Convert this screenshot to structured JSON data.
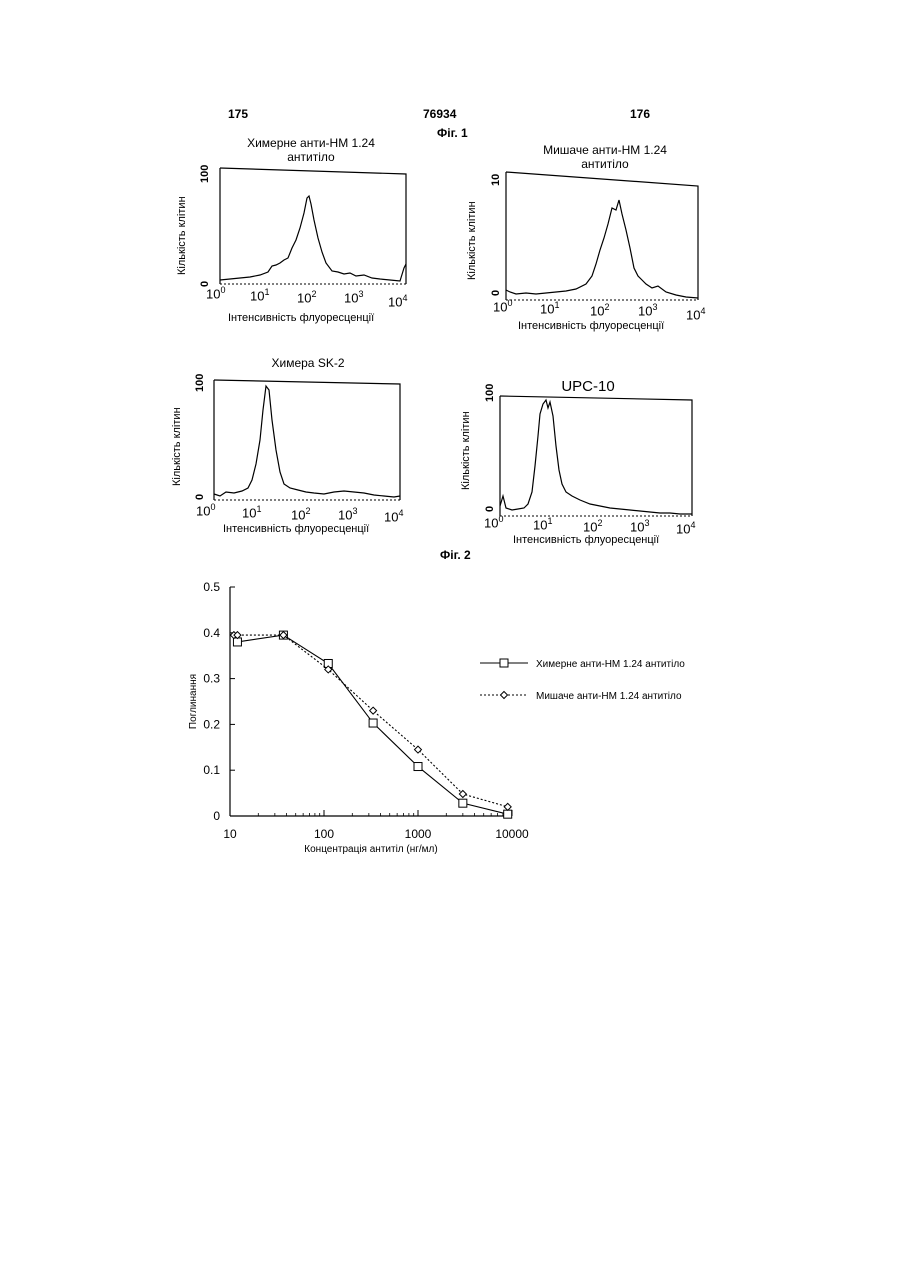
{
  "header": {
    "page_left": "175",
    "doc_number": "76934",
    "page_right": "176"
  },
  "figure1": {
    "label": "Фіг. 1",
    "panels": [
      {
        "title": "Химерне анти-НМ 1.24 антитіло",
        "ylabel": "Кількість клітин",
        "xlabel": "Інтенсивність флуоресценції",
        "yticks": [
          "0",
          "100"
        ],
        "xticks": [
          "0",
          "1",
          "2",
          "3",
          "4"
        ],
        "chart_type": "histogram",
        "peak_log10": 2.0
      },
      {
        "title": "Мишаче анти-НМ 1.24 антитіло",
        "ylabel": "Кількість клітин",
        "xlabel": "Інтенсивність флуоресценції",
        "yticks": [
          "0",
          "10"
        ],
        "xticks": [
          "0",
          "1",
          "2",
          "3",
          "4"
        ],
        "chart_type": "histogram",
        "peak_log10": 2.2
      },
      {
        "title": "Химера SK-2",
        "ylabel": "Кількість клітин",
        "xlabel": "Інтенсивність флуоресценції",
        "yticks": [
          "0",
          "100"
        ],
        "xticks": [
          "0",
          "1",
          "2",
          "3",
          "4"
        ],
        "chart_type": "histogram",
        "peak_log10": 1.1
      },
      {
        "title": "UPC-10",
        "ylabel": "Кількість клітин",
        "xlabel": "Інтенсивність флуоресценції",
        "yticks": [
          "0",
          "100"
        ],
        "xticks": [
          "0",
          "1",
          "2",
          "3",
          "4"
        ],
        "chart_type": "histogram",
        "peak_log10": 0.9
      }
    ]
  },
  "figure2": {
    "label": "Фіг. 2"
  },
  "chart_data": {
    "type": "line",
    "xlabel": "Концентрація антитіл (нг/мл)",
    "ylabel": "Поглинання",
    "x_scale": "log",
    "xlim": [
      10,
      10000
    ],
    "ylim": [
      0,
      0.5
    ],
    "xticks": [
      "10",
      "100",
      "1000",
      "10000"
    ],
    "yticks": [
      "0",
      "0.1",
      "0.2",
      "0.3",
      "0.4",
      "0.5"
    ],
    "legend_position": "right",
    "series": [
      {
        "name": "Химерне анти-НМ 1.24 антитіло",
        "style": "solid",
        "marker": "square",
        "x": [
          12,
          37,
          111,
          333,
          1000,
          3000,
          9000
        ],
        "y": [
          0.38,
          0.395,
          0.333,
          0.203,
          0.108,
          0.028,
          0.004
        ]
      },
      {
        "name": "Мишаче анти-НМ 1.24 антитіло",
        "style": "dotted",
        "marker": "diamond",
        "x": [
          11,
          12,
          37,
          111,
          333,
          1000,
          3000,
          9000
        ],
        "y": [
          0.395,
          0.395,
          0.395,
          0.32,
          0.23,
          0.145,
          0.048,
          0.02
        ]
      }
    ]
  }
}
